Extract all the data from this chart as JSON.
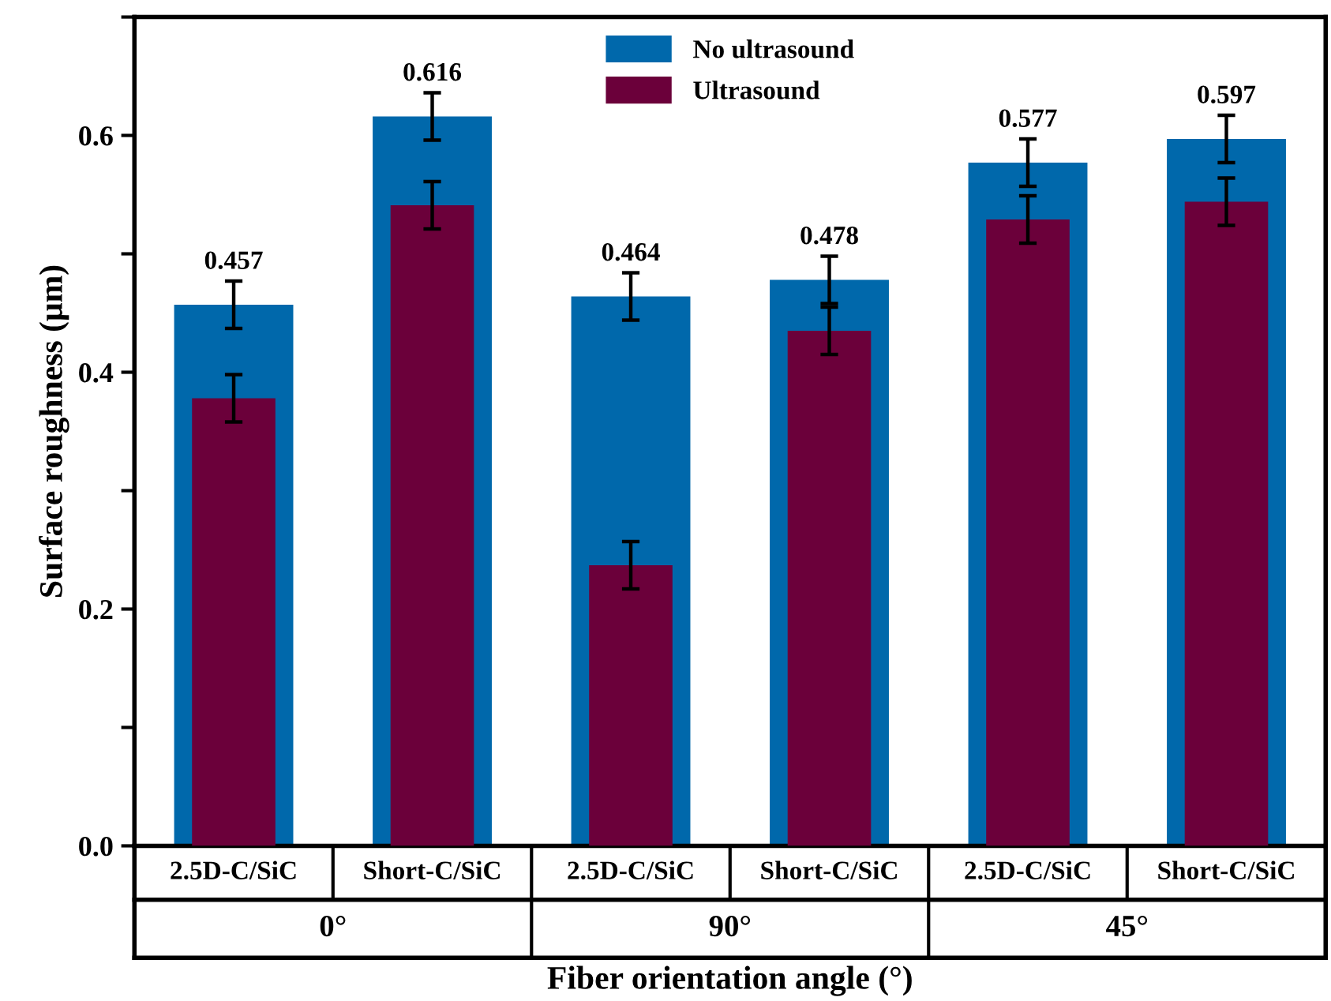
{
  "chart_data": {
    "type": "bar",
    "xlabel": "Fiber orientation angle (°)",
    "ylabel": "Surface roughness (μm)",
    "categories": [
      "2.5D-C/SiC",
      "Short-C/SiC",
      "2.5D-C/SiC",
      "Short-C/SiC",
      "2.5D-C/SiC",
      "Short-C/SiC"
    ],
    "series": [
      {
        "name": "No ultrasound",
        "color": "#0068ab",
        "values": [
          0.457,
          0.616,
          0.464,
          0.478,
          0.577,
          0.597
        ],
        "errors": [
          0.02,
          0.02,
          0.02,
          0.02,
          0.02,
          0.02
        ],
        "value_labels": [
          "0.457",
          "0.616",
          "0.464",
          "0.478",
          "0.577",
          "0.597"
        ]
      },
      {
        "name": "Ultrasound",
        "color": "#6b003a",
        "values": [
          0.378,
          0.541,
          0.237,
          0.435,
          0.529,
          0.544
        ],
        "errors": [
          0.02,
          0.02,
          0.02,
          0.02,
          0.02,
          0.02
        ]
      }
    ],
    "annotations": [
      "0°",
      "90°",
      "45°"
    ],
    "ylim": [
      0,
      0.7
    ],
    "yticks": [
      {
        "value": 0,
        "label": "0.0"
      },
      {
        "value": 0.1,
        "label": null
      },
      {
        "value": 0.2,
        "label": "0.2"
      },
      {
        "value": 0.3,
        "label": null
      },
      {
        "value": 0.4,
        "label": "0.4"
      },
      {
        "value": 0.5,
        "label": null
      },
      {
        "value": 0.6,
        "label": "0.6"
      },
      {
        "value": 0.7,
        "label": null
      }
    ],
    "grid": false,
    "legend": "top"
  }
}
